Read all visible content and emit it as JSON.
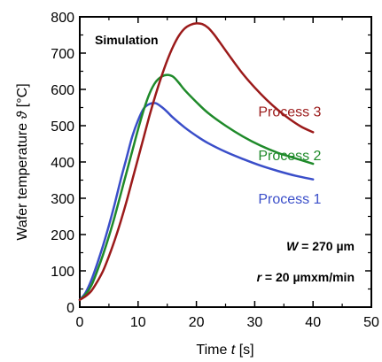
{
  "chart_data": {
    "type": "line",
    "xlabel_prefix": "Time ",
    "xlabel_var": "t",
    "xlabel_unit": " [s]",
    "ylabel_prefix": "Wafer temperature ",
    "ylabel_var": "ϑ",
    "ylabel_unit": " [°C]",
    "xlim": [
      0,
      50
    ],
    "ylim": [
      0,
      800
    ],
    "xticks": [
      "0",
      "10",
      "20",
      "30",
      "40",
      "50"
    ],
    "yticks": [
      "0",
      "100",
      "200",
      "300",
      "400",
      "500",
      "600",
      "700",
      "800"
    ],
    "xtick_values": [
      0,
      10,
      20,
      30,
      40,
      50
    ],
    "ytick_values": [
      0,
      100,
      200,
      300,
      400,
      500,
      600,
      700,
      800
    ],
    "annotations": {
      "simulation": "Simulation",
      "w_var": "W",
      "w_value": " = 270 µm",
      "r_var": "r",
      "r_value": " = 20 µmxm/min"
    },
    "colors": {
      "process1": "#3a4ec9",
      "process2": "#1f8a2a",
      "process3": "#9b1a1a"
    },
    "series": [
      {
        "name": "Process 1",
        "color": "#3a4ec9",
        "x": [
          0,
          1,
          2,
          3,
          4,
          5,
          6,
          7,
          8,
          9,
          10,
          11,
          12,
          13,
          14,
          15,
          16,
          18,
          20,
          22,
          25,
          28,
          31,
          34,
          37,
          40
        ],
        "y": [
          20,
          40,
          75,
          120,
          170,
          225,
          285,
          350,
          410,
          470,
          515,
          548,
          560,
          562,
          552,
          538,
          522,
          495,
          472,
          452,
          428,
          408,
          390,
          375,
          362,
          352
        ]
      },
      {
        "name": "Process 2",
        "color": "#1f8a2a",
        "x": [
          0,
          1,
          2,
          3,
          4,
          5,
          6,
          7,
          8,
          9,
          10,
          11,
          12,
          13,
          14,
          15,
          16,
          17,
          18,
          20,
          22,
          25,
          28,
          31,
          34,
          37,
          40
        ],
        "y": [
          20,
          35,
          60,
          100,
          145,
          195,
          250,
          310,
          370,
          430,
          490,
          545,
          590,
          620,
          635,
          640,
          635,
          618,
          598,
          565,
          535,
          500,
          470,
          445,
          425,
          410,
          395
        ]
      },
      {
        "name": "Process 3",
        "color": "#9b1a1a",
        "x": [
          0,
          1,
          2,
          3,
          4,
          5,
          6,
          7,
          8,
          9,
          10,
          11,
          12,
          13,
          14,
          15,
          16,
          17,
          18,
          19,
          20,
          21,
          22,
          23,
          24,
          26,
          28,
          30,
          32,
          34,
          36,
          38,
          40
        ],
        "y": [
          20,
          30,
          45,
          70,
          100,
          140,
          185,
          235,
          290,
          350,
          410,
          470,
          530,
          585,
          635,
          680,
          718,
          748,
          768,
          778,
          782,
          780,
          770,
          752,
          730,
          685,
          642,
          605,
          572,
          543,
          518,
          497,
          482
        ]
      }
    ],
    "series_labels": [
      {
        "text": "Process 3",
        "color": "#9b1a1a",
        "x": 40.8,
        "y": 540
      },
      {
        "text": "Process 2",
        "color": "#1f8a2a",
        "x": 40.8,
        "y": 420
      },
      {
        "text": "Process 1",
        "color": "#3a4ec9",
        "x": 40.8,
        "y": 300
      }
    ]
  }
}
